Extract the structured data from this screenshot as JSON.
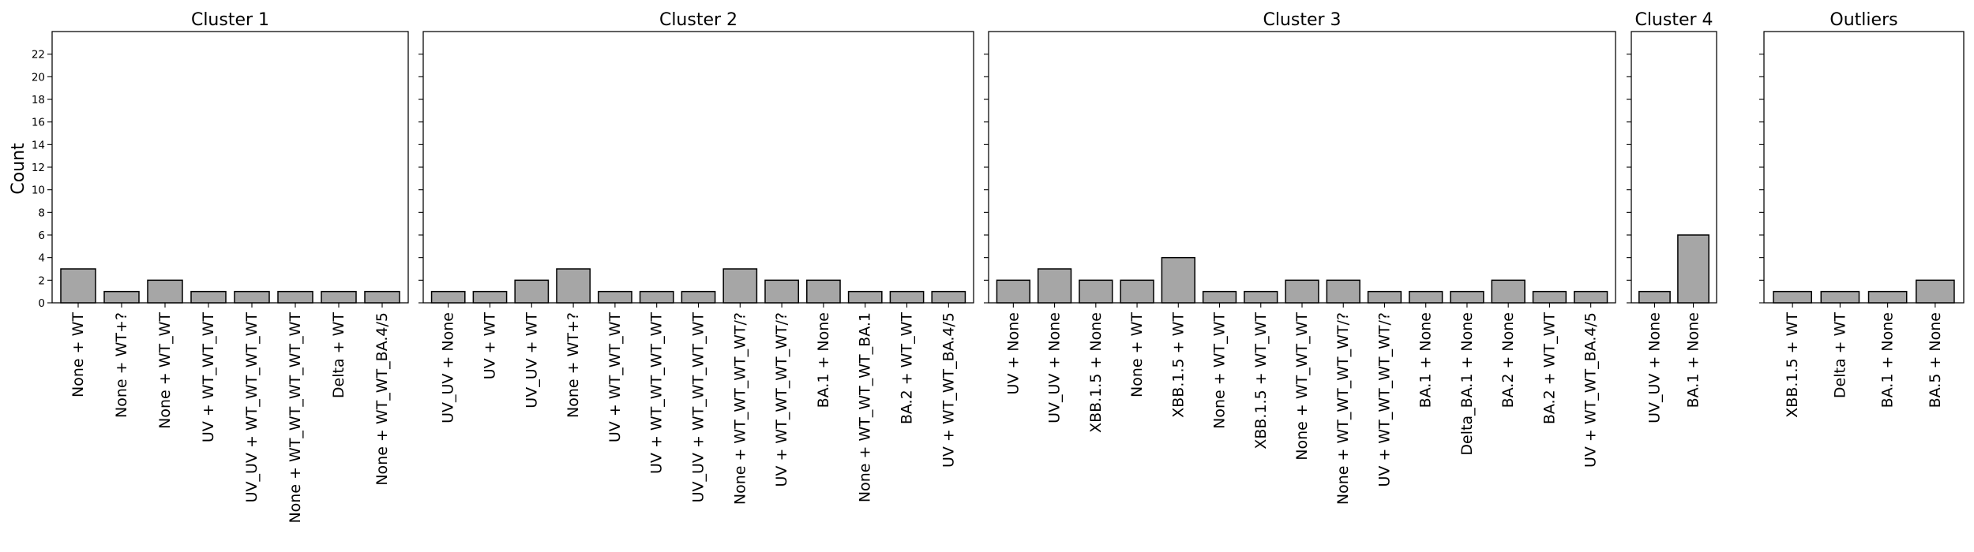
{
  "chart_data": {
    "type": "bar",
    "ylabel": "Count",
    "ylim": [
      0,
      24
    ],
    "yticks": [
      0,
      2,
      4,
      6,
      8,
      10,
      12,
      14,
      16,
      18,
      20,
      22
    ],
    "shared_y": true,
    "grid": false,
    "bar_color": "#a6a6a6",
    "edge_color": "#000000",
    "panels": [
      {
        "title": "Cluster 1",
        "categories": [
          "None + WT",
          "None + WT+?",
          "None + WT_WT",
          "UV + WT_WT_WT",
          "UV_UV + WT_WT_WT_WT",
          "None + WT_WT_WT_WT_WT",
          "Delta + WT",
          "None + WT_WT_BA.4/5"
        ],
        "values": [
          3,
          1,
          2,
          1,
          1,
          1,
          1,
          1
        ]
      },
      {
        "title": "Cluster 2",
        "categories": [
          "UV_UV + None",
          "UV + WT",
          "UV_UV + WT",
          "None + WT+?",
          "UV + WT_WT_WT",
          "UV + WT_WT_WT_WT",
          "UV_UV + WT_WT_WT_WT",
          "None + WT_WT_WT_WT/?",
          "UV + WT_WT_WT_WT/?",
          "BA.1 + None",
          "None + WT_WT_WT_BA.1",
          "BA.2 + WT_WT",
          "UV + WT_WT_BA.4/5"
        ],
        "values": [
          1,
          1,
          2,
          3,
          1,
          1,
          1,
          3,
          2,
          2,
          1,
          1,
          1
        ]
      },
      {
        "title": "Cluster 3",
        "categories": [
          "UV + None",
          "UV_UV + None",
          "XBB.1.5 + None",
          "None + WT",
          "XBB.1.5 + WT",
          "None + WT_WT",
          "XBB.1.5 + WT_WT",
          "None + WT_WT_WT",
          "None + WT_WT_WT_WT/?",
          "UV + WT_WT_WT_WT/?",
          "BA.1 + None",
          "Delta_BA.1 + None",
          "BA.2 + None",
          "BA.2 + WT_WT",
          "UV + WT_WT_BA.4/5"
        ],
        "values": [
          2,
          3,
          2,
          2,
          4,
          1,
          1,
          2,
          2,
          1,
          1,
          1,
          2,
          1,
          1
        ]
      },
      {
        "title": "Cluster 4",
        "categories": [
          "UV_UV + None",
          "BA.1 + None"
        ],
        "values": [
          1,
          6
        ]
      },
      {
        "title": "Outliers",
        "categories": [
          "XBB.1.5 + WT",
          "Delta + WT",
          "BA.1 + None",
          "BA.5 + None"
        ],
        "values": [
          1,
          1,
          1,
          2
        ]
      }
    ]
  }
}
